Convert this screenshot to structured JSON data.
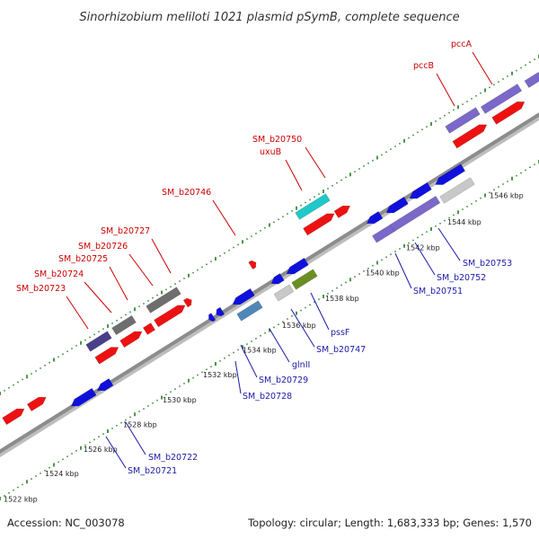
{
  "title": "Sinorhizobium meliloti 1021 plasmid pSymB, complete sequence",
  "footer": {
    "accession": "Accession: NC_003078",
    "summary": "Topology: circular; Length: 1,683,333 bp; Genes: 1,570"
  },
  "colors": {
    "backbone": "#8c8c8c",
    "tick": "#1f7a1f",
    "forward_label": "#cc0000",
    "reverse_label": "#1a1aa8",
    "feature_red": "#ee1111",
    "feature_blue": "#1010dd",
    "feature_violet": "#7b68c8",
    "feature_darkviolet": "#4a3f8a",
    "feature_gray": "#6e6e6e",
    "feature_lightgray": "#c8c8c8",
    "feature_cyan": "#20c8c8",
    "feature_steelblue": "#4f86b8",
    "feature_olive": "#6b8e23"
  },
  "scale_labels": [
    "1522 kbp",
    "1524 kbp",
    "1526 kbp",
    "1528 kbp",
    "1530 kbp",
    "1532 kbp",
    "1534 kbp",
    "1536 kbp",
    "1538 kbp",
    "1540 kbp",
    "1542 kbp",
    "1544 kbp",
    "1546 kbp"
  ],
  "forward_genes": [
    "SM_b20723",
    "SM_b20724",
    "SM_b20725",
    "SM_b20726",
    "SM_b20727",
    "SM_b20746",
    "uxuB",
    "SM_b20750",
    "pccB",
    "pccA"
  ],
  "reverse_genes": [
    "SM_b20721",
    "SM_b20722",
    "SM_b20728",
    "SM_b20729",
    "glnII",
    "SM_b20747",
    "pssF",
    "SM_b20751",
    "SM_b20752",
    "SM_b20753"
  ]
}
